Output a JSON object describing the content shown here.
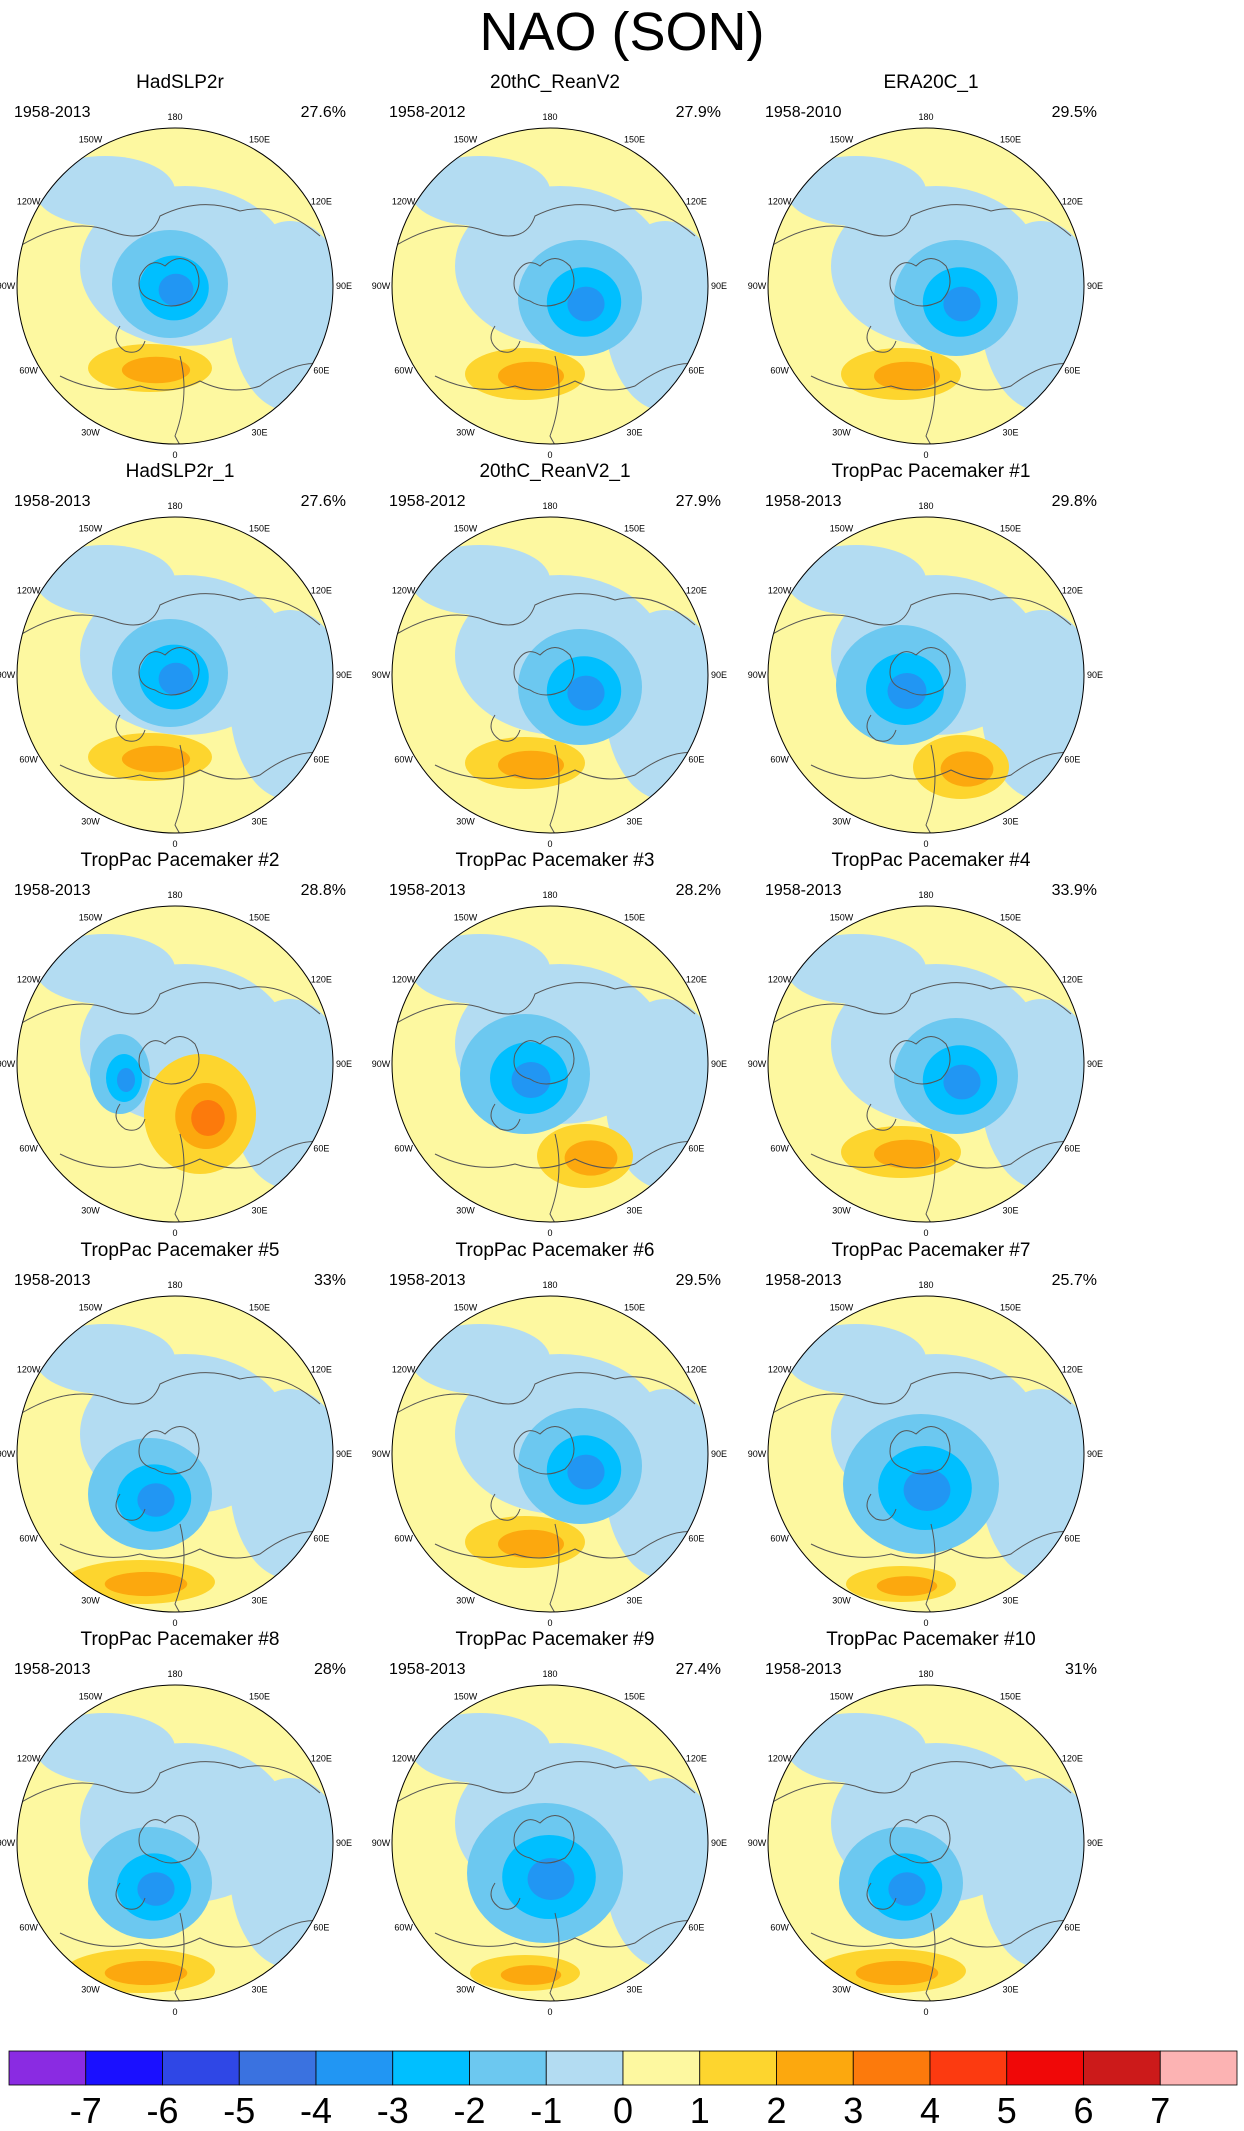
{
  "title": "NAO (SON)",
  "panels": [
    {
      "title": "HadSLP2r",
      "years": "1958-2013",
      "pct": "27.6%",
      "style": "a"
    },
    {
      "title": "20thC_ReanV2",
      "years": "1958-2012",
      "pct": "27.9%",
      "style": "b"
    },
    {
      "title": "ERA20C_1",
      "years": "1958-2010",
      "pct": "29.5%",
      "style": "b"
    },
    {
      "title": "HadSLP2r_1",
      "years": "1958-2013",
      "pct": "27.6%",
      "style": "a"
    },
    {
      "title": "20thC_ReanV2_1",
      "years": "1958-2012",
      "pct": "27.9%",
      "style": "b"
    },
    {
      "title": "TropPac Pacemaker #1",
      "years": "1958-2013",
      "pct": "29.8%",
      "style": "c"
    },
    {
      "title": "TropPac Pacemaker #2",
      "years": "1958-2013",
      "pct": "28.8%",
      "style": "d"
    },
    {
      "title": "TropPac Pacemaker #3",
      "years": "1958-2013",
      "pct": "28.2%",
      "style": "c"
    },
    {
      "title": "TropPac Pacemaker #4",
      "years": "1958-2013",
      "pct": "33.9%",
      "style": "b"
    },
    {
      "title": "TropPac Pacemaker #5",
      "years": "1958-2013",
      "pct": "33%",
      "style": "e"
    },
    {
      "title": "TropPac Pacemaker #6",
      "years": "1958-2013",
      "pct": "29.5%",
      "style": "b"
    },
    {
      "title": "TropPac Pacemaker #7",
      "years": "1958-2013",
      "pct": "25.7%",
      "style": "f"
    },
    {
      "title": "TropPac Pacemaker #8",
      "years": "1958-2013",
      "pct": "28%",
      "style": "e"
    },
    {
      "title": "TropPac Pacemaker #9",
      "years": "1958-2013",
      "pct": "27.4%",
      "style": "f"
    },
    {
      "title": "TropPac Pacemaker #10",
      "years": "1958-2013",
      "pct": "31%",
      "style": "e"
    }
  ],
  "longitude_labels": [
    "180",
    "150W",
    "150E",
    "120W",
    "120E",
    "90W",
    "90E",
    "60W",
    "60E",
    "30W",
    "30E",
    "0"
  ],
  "colorbar": {
    "labels": [
      "-7",
      "-6",
      "-5",
      "-4",
      "-3",
      "-2",
      "-1",
      "0",
      "1",
      "2",
      "3",
      "4",
      "5",
      "6",
      "7"
    ],
    "colors": [
      "#8a2be2",
      "#1a10ff",
      "#2f47e6",
      "#3a72e0",
      "#2196f3",
      "#00bfff",
      "#6cc8f0",
      "#b3dcf2",
      "#fdf8a0",
      "#fdd52e",
      "#fca80e",
      "#fc7a0c",
      "#fc3a10",
      "#f00808",
      "#cc1a1a",
      "#fcb3b3"
    ]
  },
  "chart_data": {
    "type": "heatmap",
    "title": "NAO (SON)",
    "projection": "north polar stereographic",
    "color_scale": {
      "min": -7,
      "max": 7,
      "ticks": [
        -7,
        -6,
        -5,
        -4,
        -3,
        -2,
        -1,
        0,
        1,
        2,
        3,
        4,
        5,
        6,
        7
      ]
    },
    "panels": [
      {
        "name": "HadSLP2r",
        "period": "1958-2013",
        "variance_explained": 27.6
      },
      {
        "name": "20thC_ReanV2",
        "period": "1958-2012",
        "variance_explained": 27.9
      },
      {
        "name": "ERA20C_1",
        "period": "1958-2010",
        "variance_explained": 29.5
      },
      {
        "name": "HadSLP2r_1",
        "period": "1958-2013",
        "variance_explained": 27.6
      },
      {
        "name": "20thC_ReanV2_1",
        "period": "1958-2012",
        "variance_explained": 27.9
      },
      {
        "name": "TropPac Pacemaker #1",
        "period": "1958-2013",
        "variance_explained": 29.8
      },
      {
        "name": "TropPac Pacemaker #2",
        "period": "1958-2013",
        "variance_explained": 28.8
      },
      {
        "name": "TropPac Pacemaker #3",
        "period": "1958-2013",
        "variance_explained": 28.2
      },
      {
        "name": "TropPac Pacemaker #4",
        "period": "1958-2013",
        "variance_explained": 33.9
      },
      {
        "name": "TropPac Pacemaker #5",
        "period": "1958-2013",
        "variance_explained": 33
      },
      {
        "name": "TropPac Pacemaker #6",
        "period": "1958-2013",
        "variance_explained": 29.5
      },
      {
        "name": "TropPac Pacemaker #7",
        "period": "1958-2013",
        "variance_explained": 25.7
      },
      {
        "name": "TropPac Pacemaker #8",
        "period": "1958-2013",
        "variance_explained": 28
      },
      {
        "name": "TropPac Pacemaker #9",
        "period": "1958-2013",
        "variance_explained": 27.4
      },
      {
        "name": "TropPac Pacemaker #10",
        "period": "1958-2013",
        "variance_explained": 31
      }
    ]
  }
}
